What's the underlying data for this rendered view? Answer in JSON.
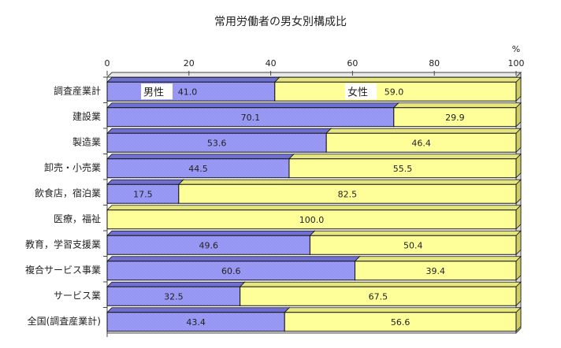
{
  "chart_data": {
    "type": "bar",
    "orientation": "horizontal",
    "stacked": true,
    "title": "常用労働者の男女別構成比",
    "unit": "%",
    "xlim": [
      0,
      100
    ],
    "x_ticks": [
      "0",
      "20",
      "40",
      "60",
      "80",
      "100"
    ],
    "categories": [
      "調査産業計",
      "建設業",
      "製造業",
      "卸売・小売業",
      "飲食店，宿泊業",
      "医療，福祉",
      "教育，学習支援業",
      "複合サービス事業",
      "サービス業",
      "全国(調査産業計)"
    ],
    "series": [
      {
        "name": "男性",
        "color": "#9b9bf6",
        "values": [
          41.0,
          70.1,
          53.6,
          44.5,
          17.5,
          0.0,
          49.6,
          60.6,
          32.5,
          43.4
        ],
        "labels": [
          "41.0",
          "70.1",
          "53.6",
          "44.5",
          "17.5",
          "",
          "49.6",
          "60.6",
          "32.5",
          "43.4"
        ]
      },
      {
        "name": "女性",
        "color": "#ffff99",
        "values": [
          59.0,
          29.9,
          46.4,
          55.5,
          82.5,
          100.0,
          50.4,
          39.4,
          67.5,
          56.6
        ],
        "labels": [
          "59.0",
          "29.9",
          "46.4",
          "55.5",
          "82.5",
          "100.0",
          "50.4",
          "39.4",
          "67.5",
          "56.6"
        ]
      }
    ],
    "legend_placement": "inside-first-bar"
  }
}
